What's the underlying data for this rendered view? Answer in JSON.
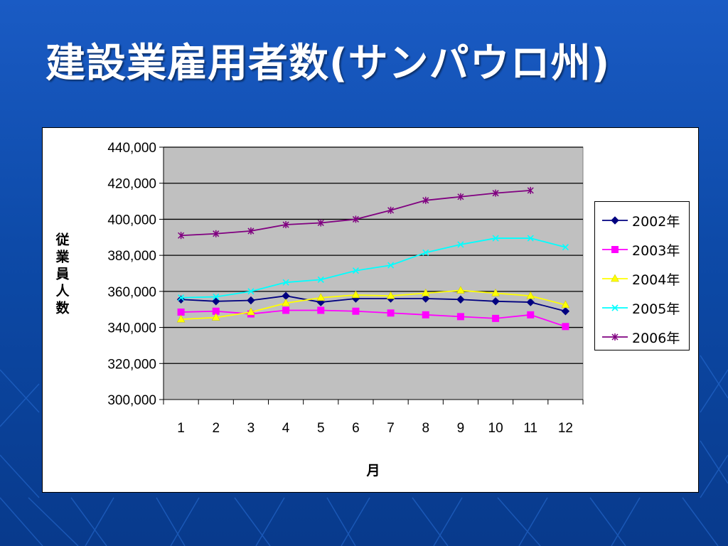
{
  "slide": {
    "title": "建設業雇用者数(サンパウロ州)"
  },
  "chart_data": {
    "type": "line",
    "title": "",
    "xlabel": "月",
    "ylabel": "従業員人数",
    "categories": [
      "1",
      "2",
      "3",
      "4",
      "5",
      "6",
      "7",
      "8",
      "9",
      "10",
      "11",
      "12"
    ],
    "ylim": [
      300000,
      440000
    ],
    "yticks": [
      300000,
      320000,
      340000,
      360000,
      380000,
      400000,
      420000,
      440000
    ],
    "ytick_labels": [
      "300,000",
      "320,000",
      "340,000",
      "360,000",
      "380,000",
      "400,000",
      "420,000",
      "440,000"
    ],
    "grid": true,
    "plot_background": "#c0c0c0",
    "legend_position": "right",
    "series": [
      {
        "name": "2002年",
        "color": "#000080",
        "marker": "diamond",
        "values": [
          355500,
          354500,
          355000,
          357500,
          354000,
          356000,
          356000,
          356000,
          355500,
          354500,
          354000,
          349000
        ]
      },
      {
        "name": "2003年",
        "color": "#ff00ff",
        "marker": "square",
        "values": [
          348500,
          349000,
          347500,
          349500,
          349500,
          349000,
          348000,
          347000,
          346000,
          345000,
          347000,
          340500
        ]
      },
      {
        "name": "2004年",
        "color": "#ffff00",
        "marker": "triangle",
        "values": [
          344500,
          345500,
          348500,
          353500,
          356500,
          358000,
          357500,
          359000,
          360500,
          359000,
          357500,
          352500
        ]
      },
      {
        "name": "2005年",
        "color": "#00ffff",
        "marker": "x",
        "values": [
          356500,
          357000,
          360000,
          365000,
          366500,
          371500,
          374500,
          381500,
          386000,
          389500,
          389500,
          384500
        ]
      },
      {
        "name": "2006年",
        "color": "#800080",
        "marker": "star",
        "values": [
          391000,
          392000,
          393500,
          397000,
          398000,
          400000,
          405000,
          410500,
          412500,
          414500,
          416000,
          null
        ]
      }
    ]
  }
}
